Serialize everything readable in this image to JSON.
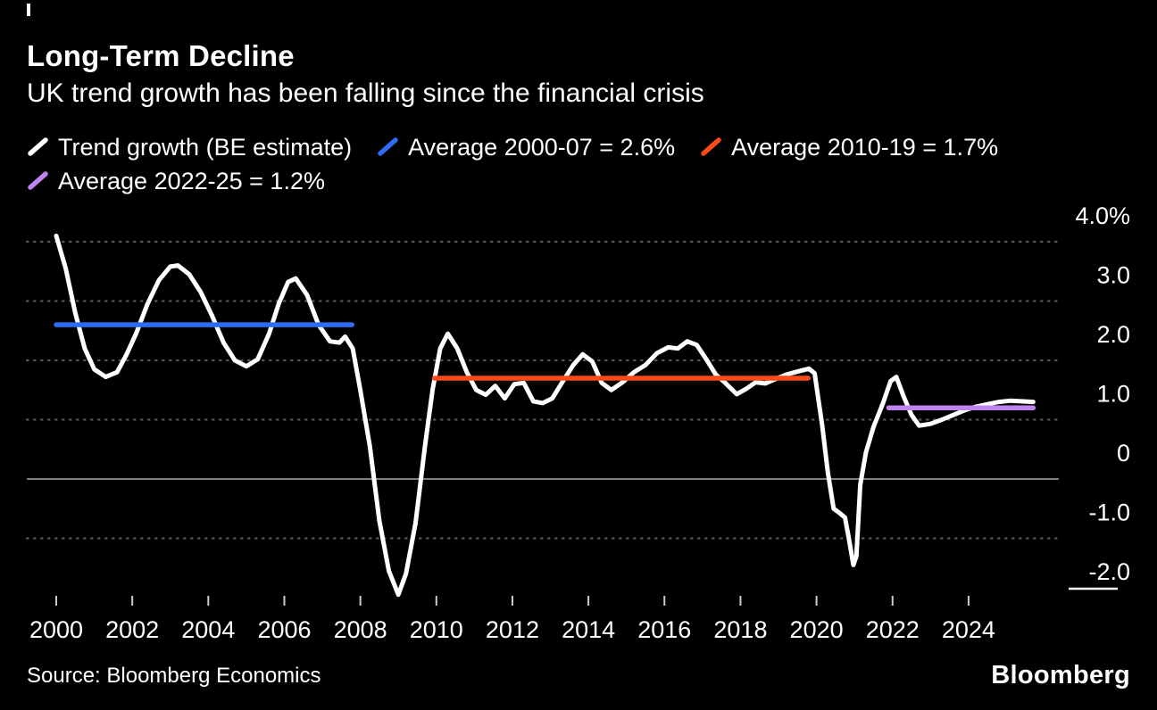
{
  "header": {
    "tick_color": "#ffffff"
  },
  "legend": [
    {
      "label": "Trend growth (BE estimate)",
      "color": "#ffffff"
    },
    {
      "label": "Average 2000-07 = 2.6%",
      "color": "#2e6cf4"
    },
    {
      "label": "Average 2010-19 = 1.7%",
      "color": "#fb4b19"
    },
    {
      "label": "Average 2022-25 = 1.2%",
      "color": "#c183f2"
    }
  ],
  "footer": {
    "source": "Source: Bloomberg Economics",
    "logo": "Bloomberg"
  },
  "chart_data": {
    "type": "line",
    "title": "Long-Term Decline",
    "subtitle": "UK trend growth has been falling since the financial crisis",
    "ylabel": "%",
    "ylim": [
      -2.5,
      4.3
    ],
    "xlim": [
      2000,
      2025.8
    ],
    "grid": "dotted-horizontal",
    "legend_position": "top",
    "background": "#000000",
    "colors": {
      "grid_dotted": "#585858",
      "zero_line": "#7d7d7d",
      "tick": "#cccccc",
      "axis_text": "#ffffff"
    },
    "x_ticks": [
      2000,
      2002,
      2004,
      2006,
      2008,
      2010,
      2012,
      2014,
      2016,
      2018,
      2020,
      2022,
      2024
    ],
    "y_ticks": [
      {
        "value": 4,
        "label": "4.0%",
        "grid": "dotted"
      },
      {
        "value": 3,
        "label": "3.0",
        "grid": "dotted"
      },
      {
        "value": 2,
        "label": "2.0",
        "grid": "dotted"
      },
      {
        "value": 1,
        "label": "1.0",
        "grid": "dotted"
      },
      {
        "value": 0,
        "label": "0",
        "grid": "solid"
      },
      {
        "value": -1,
        "label": "-1.0",
        "grid": "dotted"
      },
      {
        "value": -2,
        "label": "-2.0",
        "grid": "none",
        "underline": true
      }
    ],
    "series": [
      {
        "name": "Trend growth (BE estimate)",
        "color": "#ffffff",
        "points": [
          [
            2000,
            4.1
          ],
          [
            2000.25,
            3.55
          ],
          [
            2000.5,
            2.8
          ],
          [
            2000.75,
            2.2
          ],
          [
            2001,
            1.85
          ],
          [
            2001.3,
            1.72
          ],
          [
            2001.6,
            1.8
          ],
          [
            2001.85,
            2.1
          ],
          [
            2002.1,
            2.45
          ],
          [
            2002.4,
            2.95
          ],
          [
            2002.7,
            3.35
          ],
          [
            2003,
            3.58
          ],
          [
            2003.2,
            3.6
          ],
          [
            2003.5,
            3.45
          ],
          [
            2003.8,
            3.15
          ],
          [
            2004.1,
            2.75
          ],
          [
            2004.4,
            2.3
          ],
          [
            2004.7,
            2.0
          ],
          [
            2005,
            1.9
          ],
          [
            2005.3,
            2.02
          ],
          [
            2005.6,
            2.45
          ],
          [
            2005.85,
            2.95
          ],
          [
            2006.1,
            3.32
          ],
          [
            2006.3,
            3.38
          ],
          [
            2006.6,
            3.1
          ],
          [
            2006.9,
            2.6
          ],
          [
            2007.2,
            2.32
          ],
          [
            2007.45,
            2.3
          ],
          [
            2007.6,
            2.4
          ],
          [
            2007.8,
            2.2
          ],
          [
            2008,
            1.5
          ],
          [
            2008.25,
            0.55
          ],
          [
            2008.5,
            -0.7
          ],
          [
            2008.75,
            -1.55
          ],
          [
            2009,
            -1.95
          ],
          [
            2009.2,
            -1.6
          ],
          [
            2009.45,
            -0.75
          ],
          [
            2009.7,
            0.55
          ],
          [
            2009.9,
            1.5
          ],
          [
            2010.1,
            2.2
          ],
          [
            2010.3,
            2.45
          ],
          [
            2010.55,
            2.2
          ],
          [
            2010.8,
            1.8
          ],
          [
            2011.05,
            1.5
          ],
          [
            2011.3,
            1.42
          ],
          [
            2011.55,
            1.57
          ],
          [
            2011.8,
            1.36
          ],
          [
            2012.05,
            1.6
          ],
          [
            2012.3,
            1.62
          ],
          [
            2012.55,
            1.31
          ],
          [
            2012.8,
            1.28
          ],
          [
            2013.05,
            1.36
          ],
          [
            2013.3,
            1.62
          ],
          [
            2013.6,
            1.92
          ],
          [
            2013.85,
            2.1
          ],
          [
            2014.1,
            1.98
          ],
          [
            2014.35,
            1.62
          ],
          [
            2014.6,
            1.5
          ],
          [
            2014.9,
            1.63
          ],
          [
            2015.2,
            1.8
          ],
          [
            2015.5,
            1.92
          ],
          [
            2015.8,
            2.12
          ],
          [
            2016.1,
            2.22
          ],
          [
            2016.35,
            2.2
          ],
          [
            2016.6,
            2.32
          ],
          [
            2016.85,
            2.26
          ],
          [
            2017.1,
            2.02
          ],
          [
            2017.35,
            1.76
          ],
          [
            2017.6,
            1.62
          ],
          [
            2017.9,
            1.43
          ],
          [
            2018.15,
            1.52
          ],
          [
            2018.4,
            1.63
          ],
          [
            2018.65,
            1.61
          ],
          [
            2018.9,
            1.68
          ],
          [
            2019.2,
            1.76
          ],
          [
            2019.5,
            1.81
          ],
          [
            2019.8,
            1.86
          ],
          [
            2019.95,
            1.78
          ],
          [
            2020.15,
            0.9
          ],
          [
            2020.3,
            0.1
          ],
          [
            2020.45,
            -0.5
          ],
          [
            2020.6,
            -0.57
          ],
          [
            2020.75,
            -0.65
          ],
          [
            2020.85,
            -1.0
          ],
          [
            2020.97,
            -1.45
          ],
          [
            2021.05,
            -1.3
          ],
          [
            2021.15,
            -0.1
          ],
          [
            2021.3,
            0.45
          ],
          [
            2021.5,
            0.88
          ],
          [
            2021.75,
            1.28
          ],
          [
            2021.95,
            1.65
          ],
          [
            2022.1,
            1.72
          ],
          [
            2022.3,
            1.38
          ],
          [
            2022.5,
            1.08
          ],
          [
            2022.7,
            0.9
          ],
          [
            2023,
            0.93
          ],
          [
            2023.3,
            1.0
          ],
          [
            2023.6,
            1.08
          ],
          [
            2023.9,
            1.16
          ],
          [
            2024.2,
            1.22
          ],
          [
            2024.5,
            1.26
          ],
          [
            2024.8,
            1.3
          ],
          [
            2025.1,
            1.32
          ],
          [
            2025.4,
            1.31
          ],
          [
            2025.7,
            1.3
          ]
        ]
      },
      {
        "name": "Average 2000-07 = 2.6%",
        "color": "#2e6cf4",
        "value": 2.6,
        "x_start": 2000,
        "x_end": 2007.78
      },
      {
        "name": "Average 2010-19 = 1.7%",
        "color": "#fb4b19",
        "value": 1.7,
        "x_start": 2009.95,
        "x_end": 2019.78
      },
      {
        "name": "Average 2022-25 = 1.2%",
        "color": "#c183f2",
        "value": 1.2,
        "x_start": 2021.9,
        "x_end": 2025.7
      }
    ]
  }
}
